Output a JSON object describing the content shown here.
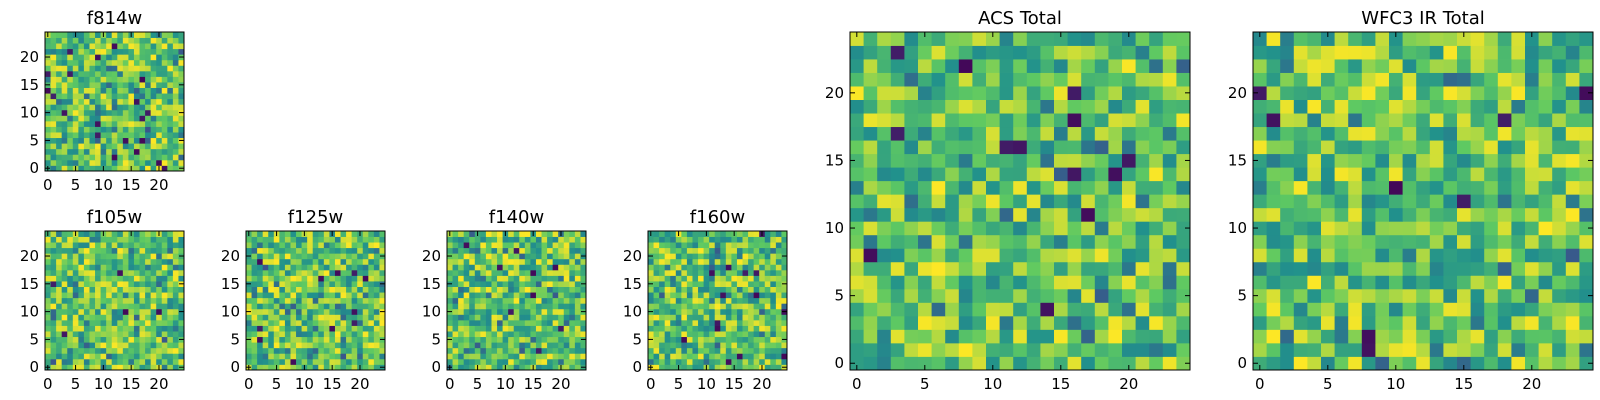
{
  "figure": {
    "colormap": "viridis",
    "colormap_stops": [
      "#440154",
      "#3b528b",
      "#21918c",
      "#5ec962",
      "#fde725"
    ]
  },
  "chart_data": [
    {
      "id": "f814w",
      "type": "heatmap",
      "title": "f814w",
      "shape": [
        25,
        25
      ],
      "seed": 814,
      "low_fraction": 0.03,
      "xlim": [
        -0.5,
        24.5
      ],
      "ylim": [
        -0.5,
        24.5
      ],
      "xticks": [
        0,
        5,
        10,
        15,
        20
      ],
      "yticks": [
        0,
        5,
        10,
        15,
        20
      ],
      "xticklabels": [
        "0",
        "5",
        "10",
        "15",
        "20"
      ],
      "yticklabels": [
        "0",
        "5",
        "10",
        "15",
        "20"
      ]
    },
    {
      "id": "f105w",
      "type": "heatmap",
      "title": "f105w",
      "shape": [
        25,
        25
      ],
      "seed": 105,
      "low_fraction": 0.015,
      "xlim": [
        -0.5,
        24.5
      ],
      "ylim": [
        -0.5,
        24.5
      ],
      "xticks": [
        0,
        5,
        10,
        15,
        20
      ],
      "yticks": [
        0,
        5,
        10,
        15,
        20
      ],
      "xticklabels": [
        "0",
        "5",
        "10",
        "15",
        "20"
      ],
      "yticklabels": [
        "0",
        "5",
        "10",
        "15",
        "20"
      ]
    },
    {
      "id": "f125w",
      "type": "heatmap",
      "title": "f125w",
      "shape": [
        25,
        25
      ],
      "seed": 125,
      "low_fraction": 0.02,
      "xlim": [
        -0.5,
        24.5
      ],
      "ylim": [
        -0.5,
        24.5
      ],
      "xticks": [
        0,
        5,
        10,
        15,
        20
      ],
      "yticks": [
        0,
        5,
        10,
        15,
        20
      ],
      "xticklabels": [
        "0",
        "5",
        "10",
        "15",
        "20"
      ],
      "yticklabels": [
        "0",
        "5",
        "10",
        "15",
        "20"
      ]
    },
    {
      "id": "f140w",
      "type": "heatmap",
      "title": "f140w",
      "shape": [
        25,
        25
      ],
      "seed": 140,
      "low_fraction": 0.015,
      "xlim": [
        -0.5,
        24.5
      ],
      "ylim": [
        -0.5,
        24.5
      ],
      "xticks": [
        0,
        5,
        10,
        15,
        20
      ],
      "yticks": [
        0,
        5,
        10,
        15,
        20
      ],
      "xticklabels": [
        "0",
        "5",
        "10",
        "15",
        "20"
      ],
      "yticklabels": [
        "0",
        "5",
        "10",
        "15",
        "20"
      ]
    },
    {
      "id": "f160w",
      "type": "heatmap",
      "title": "f160w",
      "shape": [
        25,
        25
      ],
      "seed": 160,
      "low_fraction": 0.02,
      "xlim": [
        -0.5,
        24.5
      ],
      "ylim": [
        -0.5,
        24.5
      ],
      "xticks": [
        0,
        5,
        10,
        15,
        20
      ],
      "yticks": [
        0,
        5,
        10,
        15,
        20
      ],
      "xticklabels": [
        "0",
        "5",
        "10",
        "15",
        "20"
      ],
      "yticklabels": [
        "0",
        "5",
        "10",
        "15",
        "20"
      ]
    },
    {
      "id": "acs_total",
      "type": "heatmap",
      "title": "ACS Total",
      "shape": [
        25,
        25
      ],
      "seed": 2001,
      "low_fraction": 0.025,
      "xlim": [
        -0.5,
        24.5
      ],
      "ylim": [
        -0.5,
        24.5
      ],
      "xticks": [
        0,
        5,
        10,
        15,
        20
      ],
      "yticks": [
        0,
        5,
        10,
        15,
        20
      ],
      "xticklabels": [
        "0",
        "5",
        "10",
        "15",
        "20"
      ],
      "yticklabels": [
        "0",
        "5",
        "10",
        "15",
        "20"
      ]
    },
    {
      "id": "wfc3_ir_total",
      "type": "heatmap",
      "title": "WFC3 IR Total",
      "shape": [
        25,
        25
      ],
      "seed": 3003,
      "low_fraction": 0.02,
      "xlim": [
        -0.5,
        24.5
      ],
      "ylim": [
        -0.5,
        24.5
      ],
      "xticks": [
        0,
        5,
        10,
        15,
        20
      ],
      "yticks": [
        0,
        5,
        10,
        15,
        20
      ],
      "xticklabels": [
        "0",
        "5",
        "10",
        "15",
        "20"
      ],
      "yticklabels": [
        "0",
        "5",
        "10",
        "15",
        "20"
      ]
    }
  ]
}
